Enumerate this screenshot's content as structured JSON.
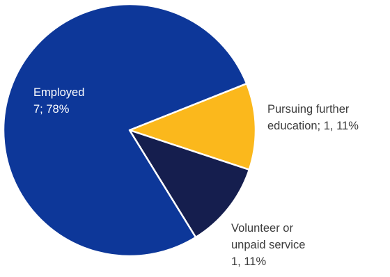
{
  "chart_data": {
    "type": "pie",
    "title": "",
    "slices": [
      {
        "category": "Employed",
        "value": 7,
        "percent": "78%",
        "color": "#0d3799",
        "label_lines": [
          "Employed",
          "7; 78%"
        ]
      },
      {
        "category": "Pursuing further education",
        "value": 1,
        "percent": "11%",
        "color": "#fbb81c",
        "label_lines": [
          "Pursuing further",
          "education; 1, 11%"
        ]
      },
      {
        "category": "Volunteer or unpaid service",
        "value": 1,
        "percent": "11%",
        "color": "#151e4e",
        "label_lines": [
          "Volunteer or",
          "unpaid service",
          "1, 11%"
        ]
      }
    ],
    "legend": "none"
  }
}
